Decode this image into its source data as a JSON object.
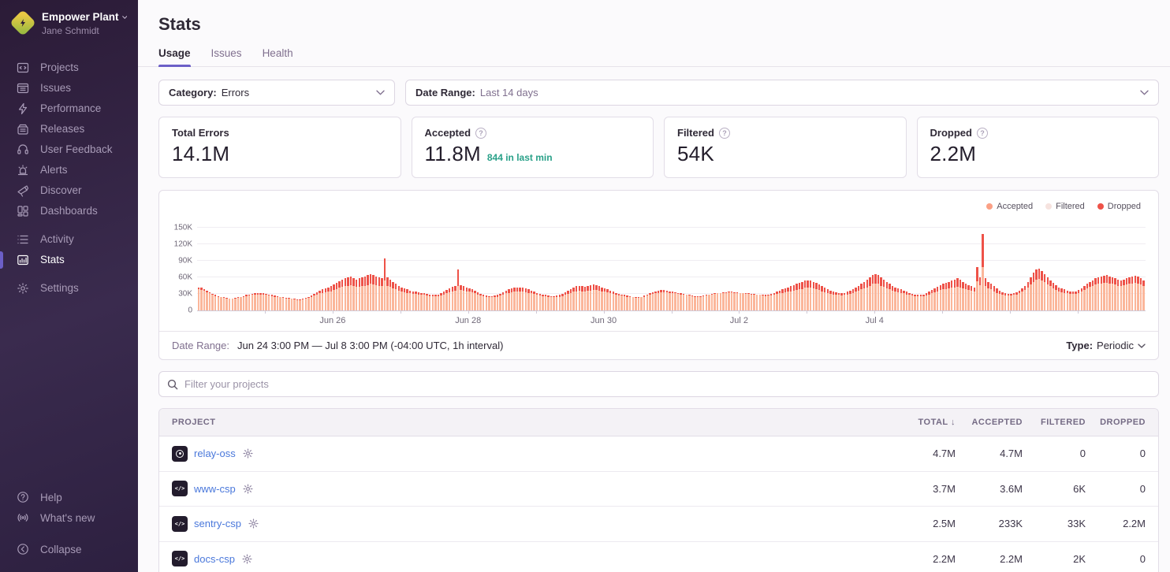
{
  "colors": {
    "accent": "#6c5fc7",
    "sidebar_bg": "#2b1b37",
    "accepted_bar": "#fbb69a",
    "dropped_bar": "#ee5248",
    "legend_accepted": "#fba085",
    "legend_filtered": "#f6e3df",
    "legend_dropped": "#ee5248",
    "link": "#4a78db",
    "teal": "#2aa189"
  },
  "sidebar": {
    "org": {
      "name": "Empower Plant",
      "user": "Jane Schmidt",
      "chevron_icon": "chevron-down-icon",
      "logo_icon": "org-logo"
    },
    "sections": [
      {
        "items": [
          {
            "icon": "projects-icon",
            "label": "Projects"
          },
          {
            "icon": "issues-icon",
            "label": "Issues"
          },
          {
            "icon": "performance-icon",
            "label": "Performance"
          },
          {
            "icon": "releases-icon",
            "label": "Releases"
          },
          {
            "icon": "user-feedback-icon",
            "label": "User Feedback"
          },
          {
            "icon": "alerts-icon",
            "label": "Alerts"
          },
          {
            "icon": "discover-icon",
            "label": "Discover"
          },
          {
            "icon": "dashboards-icon",
            "label": "Dashboards"
          }
        ]
      },
      {
        "items": [
          {
            "icon": "activity-icon",
            "label": "Activity"
          },
          {
            "icon": "stats-icon",
            "label": "Stats",
            "active": true
          }
        ]
      },
      {
        "items": [
          {
            "icon": "settings-icon",
            "label": "Settings"
          }
        ]
      }
    ],
    "footer_items": [
      {
        "icon": "help-icon",
        "label": "Help"
      },
      {
        "icon": "whats-new-icon",
        "label": "What's new"
      }
    ],
    "collapse": {
      "icon": "collapse-icon",
      "label": "Collapse"
    }
  },
  "header": {
    "title": "Stats",
    "tabs": [
      {
        "label": "Usage",
        "active": true
      },
      {
        "label": "Issues",
        "active": false
      },
      {
        "label": "Health",
        "active": false
      }
    ]
  },
  "filters": {
    "category_label": "Category:",
    "category_value": "Errors",
    "date_range_label": "Date Range:",
    "date_range_value": "Last 14 days"
  },
  "stat_cards": [
    {
      "label": "Total Errors",
      "value": "14.1M",
      "has_help": false,
      "sub": ""
    },
    {
      "label": "Accepted",
      "value": "11.8M",
      "has_help": true,
      "sub": "844 in last min"
    },
    {
      "label": "Filtered",
      "value": "54K",
      "has_help": true,
      "sub": ""
    },
    {
      "label": "Dropped",
      "value": "2.2M",
      "has_help": true,
      "sub": ""
    }
  ],
  "chart_data": {
    "type": "bar",
    "stacked": true,
    "interval": "1h",
    "x_start": "Jun 24 3:00 PM",
    "x_end": "Jul 8 3:00 PM",
    "ylim": [
      0,
      150000
    ],
    "unit": "K",
    "y_ticks": [
      "0",
      "30K",
      "60K",
      "90K",
      "120K",
      "150K"
    ],
    "y_tick_values_k": [
      0,
      30,
      60,
      90,
      120,
      150
    ],
    "x_labels": [
      {
        "label": "Jun 26",
        "hour": 48
      },
      {
        "label": "Jun 28",
        "hour": 96
      },
      {
        "label": "Jun 30",
        "hour": 144
      },
      {
        "label": "Jul 2",
        "hour": 192
      },
      {
        "label": "Jul 4",
        "hour": 240
      }
    ],
    "day_tick_hours": [
      24,
      48,
      72,
      96,
      120,
      144,
      168,
      192,
      216,
      240,
      264,
      288,
      312
    ],
    "legend": [
      {
        "label": "Accepted",
        "color": "#fba085"
      },
      {
        "label": "Filtered",
        "color": "#f6e3df"
      },
      {
        "label": "Dropped",
        "color": "#ee5248"
      }
    ],
    "note": "hourly stacked totals in thousands; accepted segment = total_k - dropped_k; filtered is negligible at this scale",
    "total_k": [
      42,
      41,
      39,
      36,
      33,
      30,
      28,
      26,
      25,
      24,
      23,
      22,
      22,
      23,
      24,
      25,
      26,
      28,
      29,
      30,
      31,
      32,
      32,
      31,
      30,
      29,
      28,
      27,
      26,
      25,
      24,
      23,
      23,
      22,
      21,
      20,
      20,
      21,
      23,
      25,
      27,
      30,
      33,
      36,
      38,
      40,
      42,
      44,
      47,
      50,
      53,
      56,
      58,
      60,
      62,
      58,
      56,
      58,
      60,
      62,
      64,
      66,
      64,
      62,
      60,
      58,
      95,
      60,
      56,
      52,
      48,
      45,
      42,
      40,
      38,
      36,
      35,
      34,
      33,
      32,
      31,
      30,
      29,
      28,
      28,
      29,
      31,
      34,
      37,
      40,
      43,
      45,
      75,
      46,
      44,
      42,
      40,
      38,
      36,
      33,
      30,
      28,
      27,
      26,
      26,
      27,
      28,
      30,
      33,
      36,
      38,
      40,
      41,
      42,
      42,
      41,
      40,
      38,
      36,
      34,
      32,
      30,
      29,
      28,
      27,
      26,
      26,
      27,
      28,
      30,
      33,
      36,
      39,
      42,
      44,
      45,
      44,
      43,
      45,
      46,
      47,
      46,
      44,
      42,
      40,
      38,
      36,
      34,
      32,
      30,
      29,
      28,
      27,
      26,
      25,
      24,
      24,
      25,
      27,
      29,
      31,
      33,
      35,
      36,
      37,
      37,
      36,
      35,
      34,
      33,
      32,
      31,
      30,
      29,
      28,
      27,
      26,
      26,
      26,
      27,
      28,
      29,
      30,
      31,
      32,
      32,
      33,
      33,
      34,
      34,
      33,
      33,
      32,
      32,
      31,
      31,
      30,
      30,
      29,
      29,
      28,
      28,
      29,
      30,
      32,
      34,
      36,
      38,
      40,
      42,
      44,
      46,
      48,
      50,
      52,
      54,
      55,
      54,
      52,
      50,
      47,
      44,
      41,
      38,
      36,
      34,
      33,
      32,
      31,
      32,
      34,
      36,
      39,
      42,
      45,
      48,
      52,
      56,
      60,
      64,
      66,
      64,
      60,
      56,
      52,
      48,
      45,
      42,
      40,
      38,
      36,
      34,
      32,
      30,
      29,
      28,
      28,
      29,
      31,
      34,
      37,
      40,
      43,
      46,
      48,
      50,
      52,
      54,
      56,
      58,
      56,
      52,
      48,
      46,
      44,
      42,
      78,
      60,
      138,
      58,
      52,
      48,
      44,
      40,
      36,
      33,
      31,
      30,
      30,
      31,
      33,
      36,
      40,
      45,
      52,
      60,
      68,
      74,
      76,
      72,
      66,
      60,
      55,
      50,
      46,
      42,
      40,
      38,
      36,
      35,
      34,
      35,
      37,
      40,
      44,
      48,
      52,
      55,
      58,
      60,
      62,
      63,
      64,
      62,
      60,
      58,
      56,
      55,
      56,
      58,
      60,
      62,
      63,
      61,
      58,
      55
    ],
    "dropped_k": [
      4,
      4,
      3,
      3,
      2,
      2,
      2,
      1,
      1,
      1,
      1,
      1,
      1,
      1,
      1,
      1,
      2,
      2,
      2,
      2,
      3,
      3,
      3,
      2,
      2,
      2,
      2,
      2,
      1,
      1,
      1,
      1,
      1,
      1,
      1,
      1,
      1,
      1,
      1,
      2,
      2,
      3,
      4,
      5,
      6,
      7,
      8,
      9,
      10,
      11,
      12,
      13,
      14,
      15,
      16,
      14,
      13,
      15,
      16,
      17,
      18,
      18,
      17,
      16,
      15,
      14,
      40,
      15,
      13,
      12,
      10,
      9,
      8,
      7,
      6,
      5,
      5,
      4,
      4,
      3,
      3,
      3,
      3,
      2,
      2,
      3,
      4,
      5,
      6,
      7,
      8,
      9,
      30,
      9,
      8,
      7,
      6,
      5,
      5,
      4,
      3,
      2,
      2,
      2,
      2,
      2,
      3,
      3,
      4,
      5,
      6,
      7,
      7,
      8,
      8,
      7,
      7,
      6,
      5,
      4,
      4,
      3,
      3,
      2,
      2,
      2,
      2,
      2,
      3,
      4,
      5,
      6,
      7,
      8,
      9,
      9,
      9,
      8,
      9,
      10,
      10,
      9,
      8,
      7,
      6,
      5,
      5,
      4,
      3,
      3,
      2,
      2,
      2,
      2,
      1,
      1,
      1,
      1,
      2,
      2,
      3,
      3,
      4,
      4,
      4,
      4,
      3,
      3,
      3,
      2,
      2,
      2,
      1,
      1,
      1,
      1,
      1,
      1,
      1,
      1,
      1,
      1,
      1,
      1,
      1,
      1,
      1,
      1,
      1,
      1,
      1,
      1,
      1,
      1,
      1,
      1,
      1,
      1,
      1,
      1,
      1,
      2,
      2,
      3,
      3,
      4,
      5,
      6,
      7,
      8,
      9,
      10,
      11,
      12,
      13,
      13,
      14,
      13,
      12,
      11,
      10,
      9,
      8,
      7,
      6,
      5,
      5,
      4,
      4,
      4,
      5,
      6,
      7,
      8,
      9,
      10,
      12,
      14,
      15,
      16,
      17,
      16,
      15,
      13,
      12,
      10,
      9,
      8,
      7,
      6,
      5,
      5,
      4,
      3,
      3,
      2,
      2,
      3,
      4,
      5,
      6,
      7,
      8,
      9,
      10,
      11,
      12,
      13,
      14,
      15,
      14,
      12,
      10,
      9,
      8,
      8,
      25,
      14,
      60,
      13,
      12,
      10,
      9,
      8,
      6,
      5,
      4,
      3,
      3,
      3,
      4,
      5,
      6,
      8,
      10,
      13,
      16,
      18,
      19,
      17,
      15,
      13,
      11,
      10,
      9,
      8,
      7,
      6,
      5,
      5,
      4,
      5,
      5,
      6,
      7,
      8,
      9,
      10,
      11,
      12,
      13,
      13,
      14,
      13,
      12,
      11,
      11,
      10,
      10,
      11,
      12,
      13,
      13,
      12,
      11,
      10
    ]
  },
  "chart_footer": {
    "label": "Date Range:",
    "value": "Jun 24 3:00 PM — Jul 8 3:00 PM (-04:00 UTC, 1h interval)",
    "type_label": "Type:",
    "type_value": "Periodic"
  },
  "project_filter": {
    "placeholder": "Filter your projects"
  },
  "table": {
    "columns": [
      {
        "label": "PROJECT",
        "sorted": false,
        "numeric": false
      },
      {
        "label": "TOTAL",
        "sorted": true,
        "numeric": true
      },
      {
        "label": "ACCEPTED",
        "sorted": false,
        "numeric": true
      },
      {
        "label": "FILTERED",
        "sorted": false,
        "numeric": true
      },
      {
        "label": "DROPPED",
        "sorted": false,
        "numeric": true
      }
    ],
    "rows": [
      {
        "project": "relay-oss",
        "avatar": "relay-avatar",
        "total": "4.7M",
        "accepted": "4.7M",
        "filtered": "0",
        "dropped": "0"
      },
      {
        "project": "www-csp",
        "avatar": "csp-avatar",
        "total": "3.7M",
        "accepted": "3.6M",
        "filtered": "6K",
        "dropped": "0"
      },
      {
        "project": "sentry-csp",
        "avatar": "csp-avatar",
        "total": "2.5M",
        "accepted": "233K",
        "filtered": "33K",
        "dropped": "2.2M"
      },
      {
        "project": "docs-csp",
        "avatar": "csp-avatar",
        "total": "2.2M",
        "accepted": "2.2M",
        "filtered": "2K",
        "dropped": "0"
      }
    ]
  }
}
